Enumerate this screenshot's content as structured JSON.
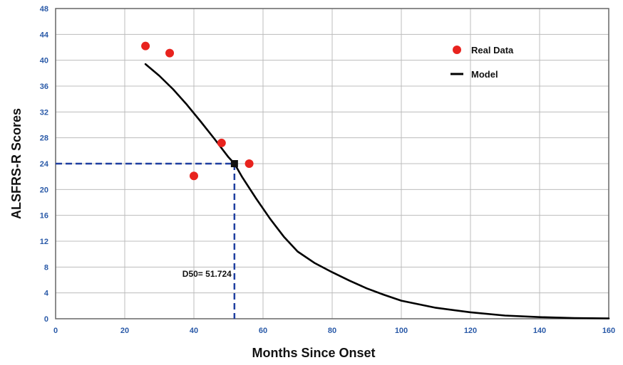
{
  "chart_data": {
    "type": "scatter",
    "title": "",
    "xlabel": "Months Since Onset",
    "ylabel": "ALSFRS-R Scores",
    "xlim": [
      0,
      160
    ],
    "ylim": [
      0,
      48
    ],
    "x_ticks": [
      0,
      20,
      40,
      60,
      80,
      100,
      120,
      140,
      160
    ],
    "y_ticks": [
      0,
      4,
      8,
      12,
      16,
      20,
      24,
      28,
      32,
      36,
      40,
      44,
      48
    ],
    "grid": true,
    "legend_position": "top-right",
    "series": [
      {
        "name": "Real Data",
        "kind": "scatter",
        "color": "#e8231e",
        "points": [
          {
            "x": 26,
            "y": 42.2
          },
          {
            "x": 33,
            "y": 41.1
          },
          {
            "x": 40,
            "y": 22.1
          },
          {
            "x": 48,
            "y": 27.2
          },
          {
            "x": 56,
            "y": 24.0
          }
        ]
      },
      {
        "name": "Model",
        "kind": "line",
        "color": "#000000",
        "points": [
          {
            "x": 26,
            "y": 39.4
          },
          {
            "x": 30,
            "y": 37.6
          },
          {
            "x": 34,
            "y": 35.5
          },
          {
            "x": 38,
            "y": 33.1
          },
          {
            "x": 42,
            "y": 30.5
          },
          {
            "x": 46,
            "y": 27.8
          },
          {
            "x": 50,
            "y": 25.0
          },
          {
            "x": 51.724,
            "y": 24.0
          },
          {
            "x": 54,
            "y": 21.9
          },
          {
            "x": 58,
            "y": 18.6
          },
          {
            "x": 62,
            "y": 15.5
          },
          {
            "x": 66,
            "y": 12.7
          },
          {
            "x": 70,
            "y": 10.4
          },
          {
            "x": 75,
            "y": 8.6
          },
          {
            "x": 80,
            "y": 7.2
          },
          {
            "x": 85,
            "y": 5.9
          },
          {
            "x": 90,
            "y": 4.7
          },
          {
            "x": 95,
            "y": 3.7
          },
          {
            "x": 100,
            "y": 2.8
          },
          {
            "x": 110,
            "y": 1.7
          },
          {
            "x": 120,
            "y": 1.0
          },
          {
            "x": 130,
            "y": 0.5
          },
          {
            "x": 140,
            "y": 0.25
          },
          {
            "x": 150,
            "y": 0.1
          },
          {
            "x": 160,
            "y": 0.05
          }
        ]
      }
    ],
    "annotations": [
      {
        "label": "D50= 51.724",
        "x": 51.724,
        "y": 24,
        "style": "dashed-crosshair",
        "color": "#1f3fa0"
      }
    ]
  }
}
